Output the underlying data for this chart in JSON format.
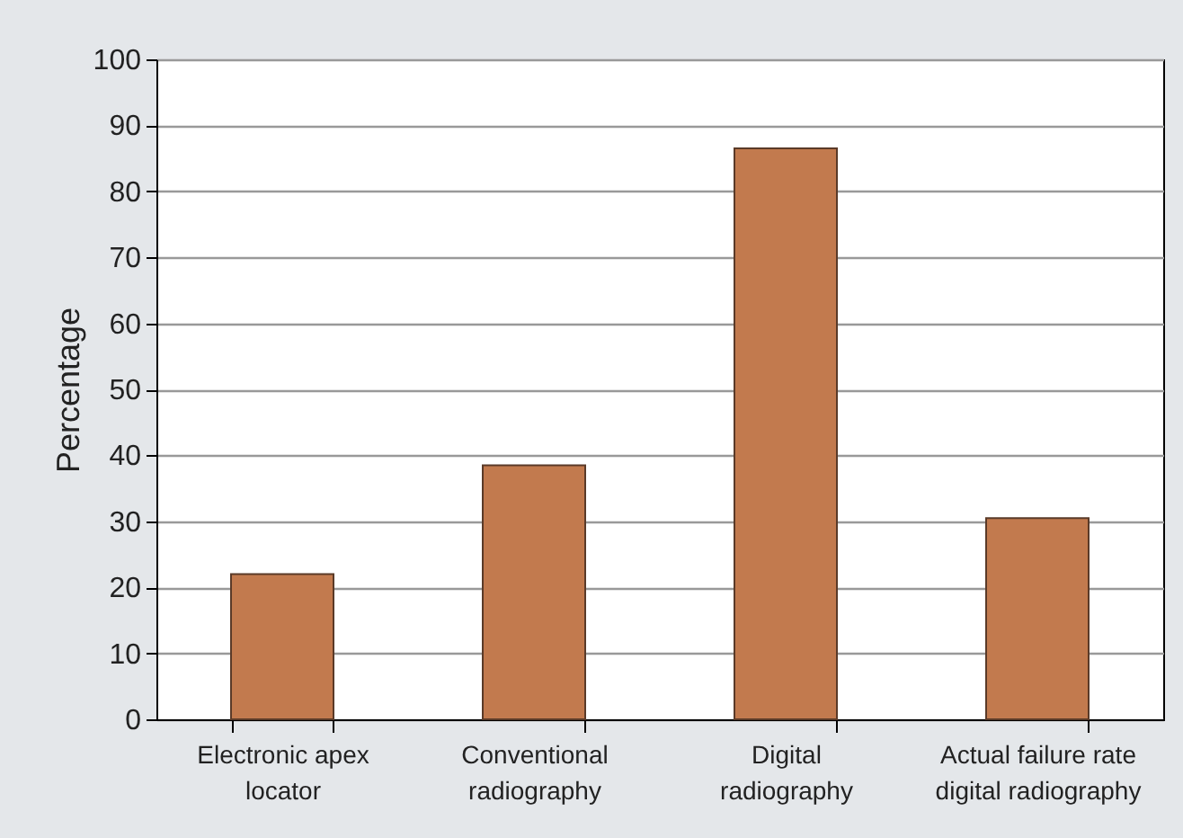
{
  "chart_data": {
    "type": "bar",
    "ylabel": "Percentage",
    "categories": [
      "Electronic apex\nlocator",
      "Conventional\nradiography",
      "Digital\nradiography",
      "Actual failure rate\ndigital radiography"
    ],
    "values": [
      22,
      38.5,
      86.5,
      30.5
    ],
    "color": "#c27a4e",
    "ylim": [
      0,
      100
    ],
    "yticks": [
      0,
      10,
      20,
      30,
      40,
      50,
      60,
      70,
      80,
      90,
      100
    ],
    "grid": "y"
  }
}
